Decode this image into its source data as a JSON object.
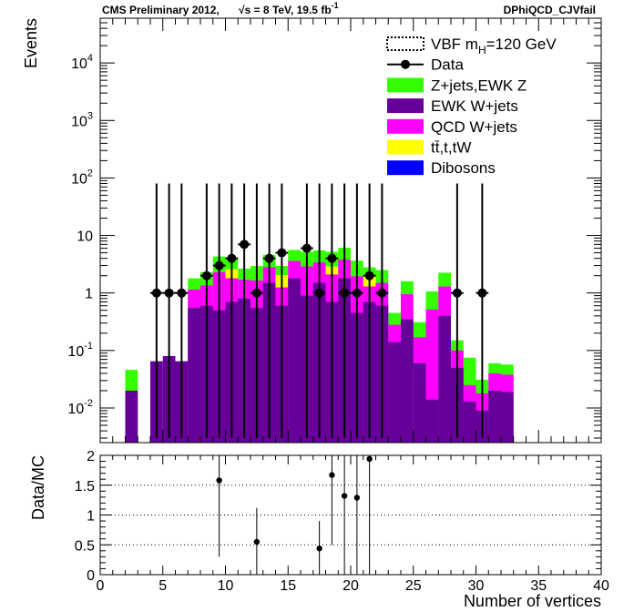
{
  "header": {
    "left": "CMS Preliminary 2012,",
    "energy": "√s = 8 TeV, 19.5 fb",
    "energy_sup": "-1",
    "right": "DPhiQCD_CJVfail"
  },
  "chart_data": [
    {
      "type": "bar",
      "stacked": true,
      "ylabel": "Events",
      "yscale": "log",
      "ylim": [
        0.0025,
        60000
      ],
      "xlim": [
        0,
        40
      ],
      "bin_edges": [
        0,
        1,
        2,
        3,
        4,
        5,
        6,
        7,
        8,
        9,
        10,
        11,
        12,
        13,
        14,
        15,
        16,
        17,
        18,
        19,
        20,
        21,
        22,
        23,
        24,
        25,
        26,
        27,
        28,
        29,
        30,
        31,
        32,
        33,
        34,
        35,
        36,
        37,
        38,
        39,
        40
      ],
      "yticks": [
        {
          "value": 0.01,
          "base": "10",
          "exp": "-2"
        },
        {
          "value": 0.1,
          "base": "10",
          "exp": "-1"
        },
        {
          "value": 1,
          "base": "1",
          "exp": ""
        },
        {
          "value": 10,
          "base": "10",
          "exp": ""
        },
        {
          "value": 100,
          "base": "10",
          "exp": "2"
        },
        {
          "value": 1000,
          "base": "10",
          "exp": "3"
        },
        {
          "value": 10000,
          "base": "10",
          "exp": "4"
        }
      ],
      "legend": {
        "position": "top-right",
        "entries": [
          {
            "label": "VBF m",
            "sub": "H",
            "tail": "=120 GeV",
            "style": "dotted-line"
          },
          {
            "label": "Data",
            "sub": "",
            "tail": "",
            "style": "marker"
          },
          {
            "label": "Z+jets,EWK Z",
            "sub": "",
            "tail": "",
            "style": "box",
            "color": "#33ff00"
          },
          {
            "label": "EWK W+jets",
            "sub": "",
            "tail": "",
            "style": "box",
            "color": "#660099"
          },
          {
            "label": "QCD W+jets",
            "sub": "",
            "tail": "",
            "style": "box",
            "color": "#ff00ff"
          },
          {
            "label": "tt̄,t,tW",
            "sub": "",
            "tail": "",
            "style": "box",
            "color": "#ffff00"
          },
          {
            "label": "Dibosons",
            "sub": "",
            "tail": "",
            "style": "box",
            "color": "#0000ff"
          }
        ]
      },
      "stack_order": [
        "EWK W+jets",
        "QCD W+jets",
        "tt̄,t,tW",
        "Z+jets,EWK Z"
      ],
      "series": [
        {
          "name": "EWK W+jets",
          "color": "#660099",
          "values": [
            0,
            0,
            0.02,
            0,
            0.065,
            0.08,
            0.065,
            0.55,
            0.6,
            0.5,
            0.7,
            0.8,
            0.55,
            1.5,
            0.6,
            1.8,
            0.9,
            1.5,
            0.7,
            1.8,
            0.45,
            0.7,
            0.6,
            0.14,
            0.35,
            0.06,
            0.014,
            0.4,
            0.05,
            0.013,
            0.009,
            0.02,
            0.019,
            0,
            0,
            0,
            0,
            0,
            0,
            0
          ]
        },
        {
          "name": "QCD W+jets",
          "color": "#ff00ff",
          "values": [
            0,
            0,
            0,
            0,
            0,
            0,
            0,
            0.6,
            0.75,
            1.8,
            1.1,
            0.9,
            1.1,
            1.3,
            0.65,
            1.8,
            2.0,
            1.9,
            1.4,
            2.0,
            1.5,
            0.6,
            0.9,
            0.14,
            0.6,
            0.11,
            0.5,
            0.9,
            0.05,
            0.012,
            0.009,
            0.02,
            0.019,
            0,
            0,
            0,
            0,
            0,
            0,
            0
          ]
        },
        {
          "name": "tt̄,t,tW",
          "color": "#ffff00",
          "values": [
            0,
            0,
            0,
            0,
            0,
            0,
            0,
            0,
            0,
            0,
            0.8,
            0,
            0,
            0,
            0.8,
            0,
            0,
            0,
            0.8,
            0,
            0,
            0.8,
            0,
            0,
            0,
            0,
            0,
            0,
            0,
            0,
            0,
            0,
            0,
            0,
            0,
            0,
            0,
            0,
            0,
            0
          ]
        },
        {
          "name": "Z+jets,EWK Z",
          "color": "#33ff00",
          "values": [
            0,
            0,
            0.026,
            0,
            0,
            0,
            0,
            0.65,
            0.95,
            2.0,
            1.35,
            0.95,
            1.3,
            1.8,
            0.9,
            2.0,
            2.3,
            2.1,
            2.3,
            2.3,
            1.7,
            0.7,
            1.0,
            0.17,
            0.65,
            0.14,
            0.55,
            0.95,
            0.05,
            0.05,
            0.013,
            0.02,
            0.019,
            0,
            0,
            0,
            0,
            0,
            0,
            0
          ]
        }
      ],
      "data_points": [
        {
          "x": 4.5,
          "y": 1,
          "lo": 0.003,
          "hi": 80
        },
        {
          "x": 5.5,
          "y": 1,
          "lo": 0.003,
          "hi": 80
        },
        {
          "x": 6.5,
          "y": 1,
          "lo": 0.003,
          "hi": 80
        },
        {
          "x": 8.5,
          "y": 2,
          "lo": 0.003,
          "hi": 80
        },
        {
          "x": 9.5,
          "y": 3,
          "lo": 0.003,
          "hi": 80
        },
        {
          "x": 10.5,
          "y": 4,
          "lo": 0.003,
          "hi": 80
        },
        {
          "x": 11.5,
          "y": 7,
          "lo": 0.003,
          "hi": 80
        },
        {
          "x": 12.5,
          "y": 1,
          "lo": 0.003,
          "hi": 80
        },
        {
          "x": 13.5,
          "y": 4,
          "lo": 0.003,
          "hi": 80
        },
        {
          "x": 14.5,
          "y": 5,
          "lo": 0.003,
          "hi": 80
        },
        {
          "x": 16.5,
          "y": 6,
          "lo": 0.003,
          "hi": 80
        },
        {
          "x": 17.5,
          "y": 1,
          "lo": 0.003,
          "hi": 80
        },
        {
          "x": 18.5,
          "y": 4,
          "lo": 0.003,
          "hi": 80
        },
        {
          "x": 19.5,
          "y": 1,
          "lo": 0.003,
          "hi": 80
        },
        {
          "x": 20.5,
          "y": 1,
          "lo": 0.003,
          "hi": 80
        },
        {
          "x": 21.5,
          "y": 2,
          "lo": 0.003,
          "hi": 80
        },
        {
          "x": 22.5,
          "y": 1,
          "lo": 0.003,
          "hi": 80
        },
        {
          "x": 28.5,
          "y": 1,
          "lo": 0.003,
          "hi": 80
        },
        {
          "x": 30.5,
          "y": 1,
          "lo": 0.003,
          "hi": 80
        }
      ]
    },
    {
      "type": "scatter",
      "xlabel": "Number of vertices",
      "ylabel": "Data/MC",
      "xlim": [
        0,
        40
      ],
      "ylim": [
        0,
        2
      ],
      "xticks": [
        0,
        5,
        10,
        15,
        20,
        25,
        30,
        35,
        40
      ],
      "yticks": [
        0,
        0.5,
        1,
        1.5,
        2
      ],
      "grid": "horizontal dotted",
      "points": [
        {
          "x": 9.5,
          "y": 1.58,
          "lo": 0.3,
          "hi": 2.0
        },
        {
          "x": 12.5,
          "y": 0.55,
          "lo": 0.0,
          "hi": 1.12
        },
        {
          "x": 17.5,
          "y": 0.44,
          "lo": 0.0,
          "hi": 0.9
        },
        {
          "x": 18.5,
          "y": 1.67,
          "lo": 0.5,
          "hi": 2.0
        },
        {
          "x": 19.5,
          "y": 1.32,
          "lo": 0.0,
          "hi": 2.0
        },
        {
          "x": 20.5,
          "y": 1.29,
          "lo": 0.0,
          "hi": 2.0
        },
        {
          "x": 21.5,
          "y": 1.94,
          "lo": 0.0,
          "hi": 2.0
        }
      ]
    }
  ]
}
